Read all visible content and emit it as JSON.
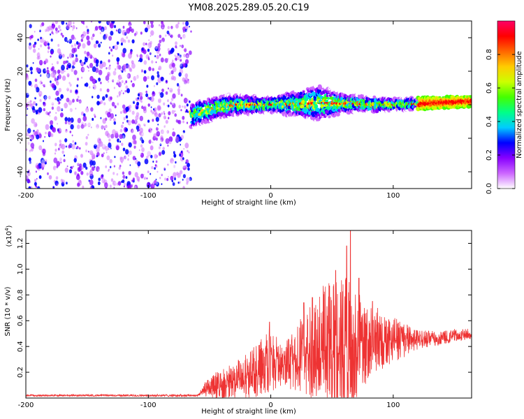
{
  "page_title": "YM08.2025.289.05.20.C19",
  "chart_data": [
    {
      "type": "heatmap",
      "title": "YM08.2025.289.05.20.C19",
      "xlabel": "Height of straight line (km)",
      "ylabel": "Frequency (Hz)",
      "xlim": [
        -200,
        164
      ],
      "ylim": [
        -50,
        50
      ],
      "x_ticks": [
        "-200",
        "-100",
        "0",
        "100"
      ],
      "x_tick_values": [
        -200,
        -100,
        0,
        100
      ],
      "y_ticks": [
        "40",
        "20",
        "0",
        "-20",
        "-40"
      ],
      "y_tick_values": [
        40,
        20,
        0,
        -20,
        -40
      ],
      "noise_region_x": [
        -200,
        -65
      ],
      "signal_region_x": [
        -65,
        164
      ],
      "ridge_center_hz": [
        {
          "x": -70,
          "f": -8
        },
        {
          "x": -60,
          "f": -5
        },
        {
          "x": -45,
          "f": -2
        },
        {
          "x": -30,
          "f": 0
        },
        {
          "x": 0,
          "f": 0
        },
        {
          "x": 40,
          "f": 1
        },
        {
          "x": 100,
          "f": 0
        },
        {
          "x": 130,
          "f": 1
        },
        {
          "x": 164,
          "f": 2
        }
      ],
      "ridge_halfwidth_hz": [
        {
          "x": -70,
          "w": 8
        },
        {
          "x": -40,
          "w": 7
        },
        {
          "x": 0,
          "w": 5
        },
        {
          "x": 40,
          "w": 11
        },
        {
          "x": 60,
          "w": 6
        },
        {
          "x": 100,
          "w": 4
        },
        {
          "x": 164,
          "w": 3
        }
      ],
      "colorbar": {
        "label": "Normalized spectral amplitude",
        "range": [
          0,
          1
        ],
        "ticks": [
          "0.0",
          "0.2",
          "0.4",
          "0.6",
          "0.8"
        ],
        "tick_values": [
          0.0,
          0.2,
          0.4,
          0.6,
          0.8
        ],
        "colors": [
          "#ffffff",
          "#cc66ff",
          "#8800ff",
          "#0000ff",
          "#00ccff",
          "#00ff88",
          "#44ff00",
          "#ccff00",
          "#ffcc00",
          "#ff6600",
          "#ff0000",
          "#ff0066"
        ]
      }
    },
    {
      "type": "line",
      "xlabel": "Height of straight line (km)",
      "ylabel": "SNR (10 * v/v)",
      "y_multiplier": "(x10",
      "y_multiplier_exp": "4",
      "y_multiplier_close": ")",
      "xlim": [
        -200,
        164
      ],
      "ylim": [
        0,
        13000
      ],
      "x_ticks": [
        "-200",
        "-100",
        "0",
        "100"
      ],
      "x_tick_values": [
        -200,
        -100,
        0,
        100
      ],
      "y_ticks": [
        "1.2",
        "1.0",
        "0.8",
        "0.6",
        "0.4",
        "0.2"
      ],
      "y_tick_values": [
        12000,
        10000,
        8000,
        6000,
        4000,
        2000
      ],
      "series": [
        {
          "name": "SNR",
          "color": "#ee3333",
          "envelope": [
            {
              "x": -200,
              "base": 200,
              "amp": 100
            },
            {
              "x": -60,
              "base": 200,
              "amp": 150
            },
            {
              "x": -50,
              "base": 900,
              "amp": 900
            },
            {
              "x": -30,
              "base": 1200,
              "amp": 1500
            },
            {
              "x": -15,
              "base": 2000,
              "amp": 2000
            },
            {
              "x": 0,
              "base": 3000,
              "amp": 2500
            },
            {
              "x": 10,
              "base": 2500,
              "amp": 1500
            },
            {
              "x": 20,
              "base": 3000,
              "amp": 2500
            },
            {
              "x": 30,
              "base": 3500,
              "amp": 3500
            },
            {
              "x": 40,
              "base": 4000,
              "amp": 4500
            },
            {
              "x": 55,
              "base": 4000,
              "amp": 6000
            },
            {
              "x": 65,
              "base": 4000,
              "amp": 5000
            },
            {
              "x": 80,
              "base": 4500,
              "amp": 3000
            },
            {
              "x": 100,
              "base": 4500,
              "amp": 1800
            },
            {
              "x": 120,
              "base": 4500,
              "amp": 800
            },
            {
              "x": 164,
              "base": 5000,
              "amp": 400
            }
          ],
          "peaks": [
            {
              "x": -1,
              "y": 5900
            },
            {
              "x": 5,
              "y": 3200
            },
            {
              "x": 17,
              "y": 4500
            },
            {
              "x": 27,
              "y": 7400
            },
            {
              "x": 34,
              "y": 7800
            },
            {
              "x": 48,
              "y": 8700
            },
            {
              "x": 53,
              "y": 9900
            },
            {
              "x": 57,
              "y": 8200
            },
            {
              "x": 62,
              "y": 11800
            },
            {
              "x": 65,
              "y": 13000
            },
            {
              "x": 72,
              "y": 9300
            },
            {
              "x": 83,
              "y": 7500
            }
          ]
        }
      ]
    }
  ]
}
